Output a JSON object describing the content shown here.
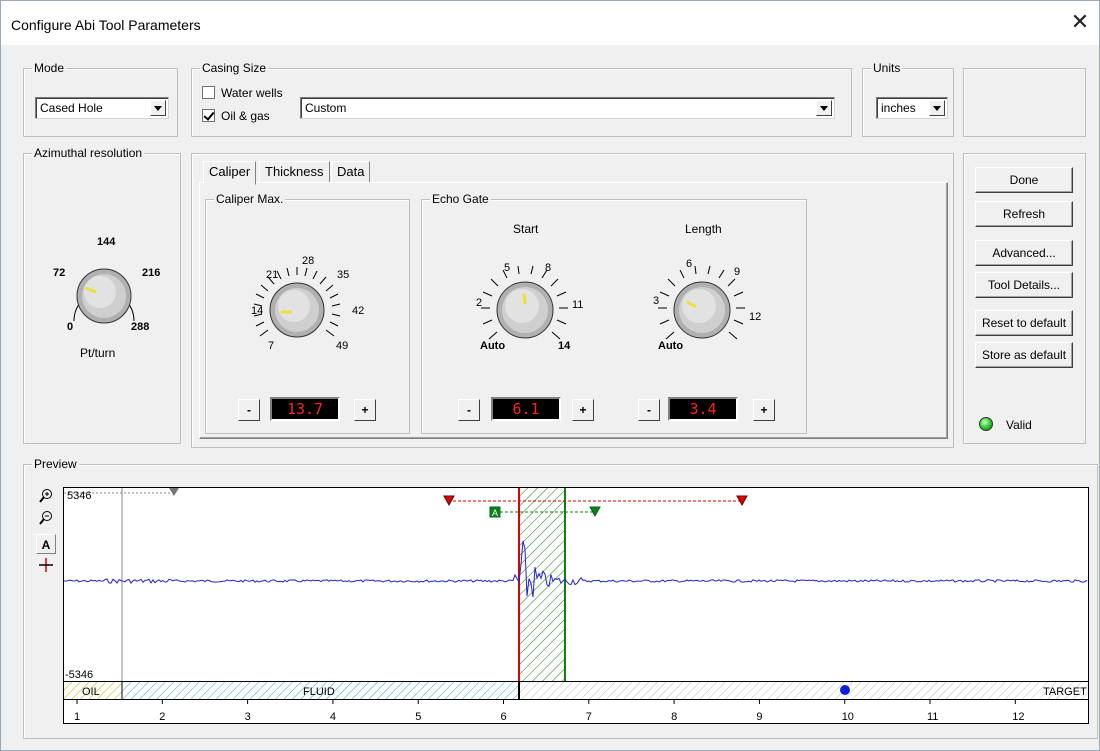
{
  "window": {
    "title": "Configure Abi Tool Parameters",
    "close_glyph": "✕"
  },
  "mode": {
    "label": "Mode",
    "value": "Cased Hole"
  },
  "casing": {
    "label": "Casing Size",
    "water_wells": {
      "label": "Water wells",
      "checked": false
    },
    "oil_gas": {
      "label": "Oil & gas",
      "checked": true
    },
    "value": "Custom"
  },
  "units": {
    "label": "Units",
    "value": "inches"
  },
  "azimuthal": {
    "label": "Azimuthal resolution",
    "ticks": [
      "144",
      "72",
      "216",
      "0",
      "288"
    ],
    "caption": "Pt/turn"
  },
  "tabs": [
    "Caliper",
    "Thickness",
    "Data"
  ],
  "caliper_max": {
    "label": "Caliper Max.",
    "ticks": [
      "28",
      "21",
      "35",
      "14",
      "42",
      "7",
      "49"
    ],
    "value": "13.7",
    "minus": "-",
    "plus": "+"
  },
  "echo_gate": {
    "label": "Echo Gate",
    "start": {
      "title": "Start",
      "ticks": [
        "5",
        "8",
        "2",
        "11",
        "Auto",
        "14"
      ],
      "value": "6.1",
      "minus": "-",
      "plus": "+"
    },
    "length": {
      "title": "Length",
      "ticks": [
        "6",
        "9",
        "3",
        "12",
        "Auto"
      ],
      "value": "3.4",
      "minus": "-",
      "plus": "+"
    }
  },
  "buttons": {
    "done": "Done",
    "refresh": "Refresh",
    "advanced": "Advanced...",
    "tool_details": "Tool Details...",
    "reset": "Reset to default",
    "store": "Store as default"
  },
  "status": {
    "label": "Valid",
    "color": "#2ecc2e"
  },
  "preview": {
    "label": "Preview",
    "y_top": "5346",
    "y_bottom": "-5346",
    "gate_marker": "A",
    "zones": [
      "OIL",
      "FLUID",
      "TARGET"
    ],
    "x_ticks": [
      "1",
      "2",
      "3",
      "4",
      "5",
      "6",
      "7",
      "8",
      "9",
      "10",
      "11",
      "12"
    ],
    "colors": {
      "signal": "#2222cc",
      "gate_red": "#e00000",
      "gate_green": "#108010",
      "oil": "#f3f09a",
      "fluid": "#7fd9e6",
      "target_dot": "#0a1fd6"
    },
    "tools": [
      "zoom-in-icon",
      "zoom-out-icon",
      "auto-scale-icon",
      "crosshair-icon"
    ]
  }
}
